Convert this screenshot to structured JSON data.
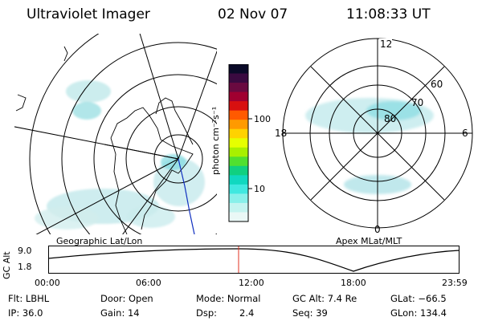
{
  "header": {
    "instrument": "Ultraviolet Imager",
    "date": "02 Nov 07",
    "time": "11:08:33 UT"
  },
  "left_map": {
    "caption": "Geographic Lat/Lon",
    "content": "geographic-map-auroral-emission"
  },
  "colorbar": {
    "unit_label": "photon cm⁻²s⁻¹",
    "ticks": [
      "100",
      "10"
    ],
    "colors": [
      "#0a0a28",
      "#3a0a40",
      "#6a0a40",
      "#a00030",
      "#d81010",
      "#ff5a00",
      "#ff9a00",
      "#ffd200",
      "#e6ff00",
      "#a8f000",
      "#50e030",
      "#10d080",
      "#10d8c0",
      "#40e8e0",
      "#88f0ea",
      "#c4f4f0",
      "#eaf8f6"
    ]
  },
  "right_polar": {
    "caption": "Apex MLat/MLT",
    "mlt_labels": [
      "12",
      "18",
      "6",
      "0"
    ],
    "mlat_labels": [
      "60",
      "70",
      "80"
    ]
  },
  "gc_alt_plot": {
    "ylabel": "GC Alt",
    "ytick_labels": [
      "9.0",
      "1.8"
    ],
    "xtick_labels": [
      "00:00",
      "06:00",
      "12:00",
      "18:00",
      "23:59"
    ],
    "current_marker_color": "#e03020"
  },
  "info": {
    "filter": "Flt: LBHL",
    "ip": "IP: 36.0",
    "door": "Door: Open",
    "gain": "Gain: 14",
    "mode": "Mode: Normal",
    "dsp_label": "Dsp:",
    "dsp_value": "2.4",
    "gc_alt": "GC Alt: 7.4 Re",
    "seq": "Seq: 39",
    "glat": "GLat: −66.5",
    "glon": "GLon: 134.4"
  }
}
